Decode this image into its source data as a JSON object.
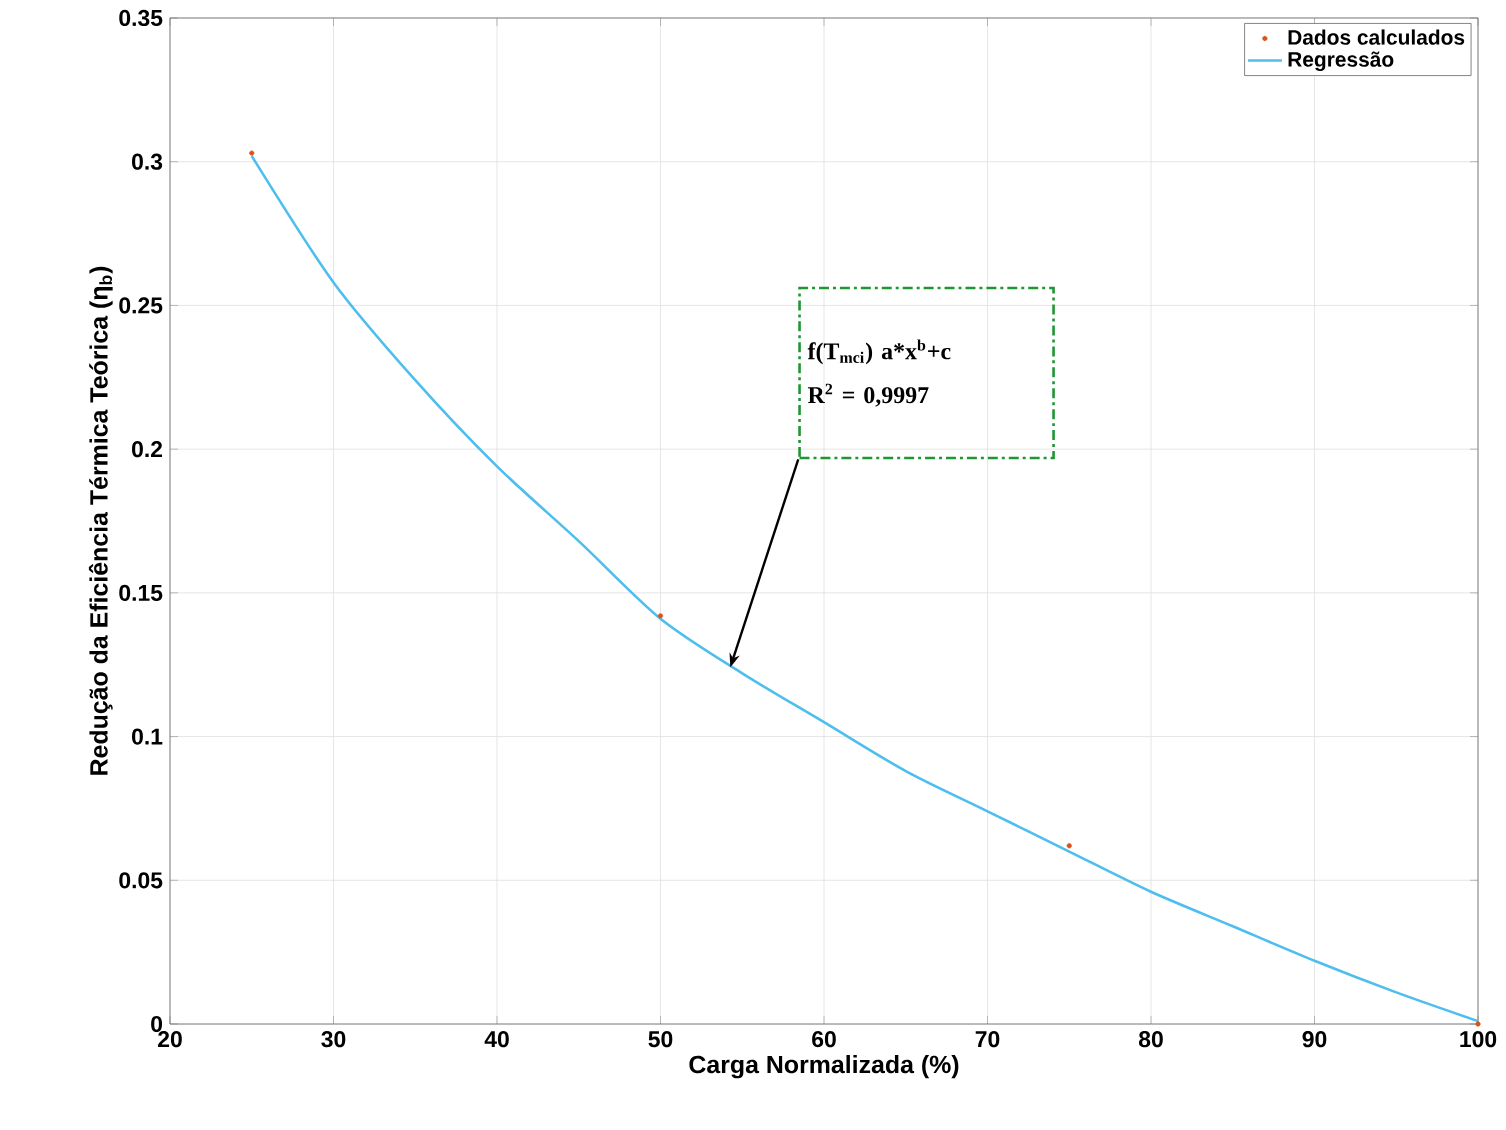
{
  "chart_data": {
    "type": "scatter",
    "xlabel": "Carga Normalizada (%)",
    "ylabel": "Redução da Eficiência Térmica Teórica (η$_{b}$)",
    "xlim": [
      20,
      100
    ],
    "ylim": [
      0,
      0.35
    ],
    "xticks": [
      20,
      30,
      40,
      50,
      60,
      70,
      80,
      90,
      100
    ],
    "yticks": [
      0,
      0.05,
      0.1,
      0.15,
      0.2,
      0.25,
      0.3,
      0.35
    ],
    "grid": true,
    "legend": "top right",
    "series": [
      {
        "name": "Dados calculados",
        "marker": "circle",
        "color": "#d95319",
        "x": [
          25,
          50,
          75,
          100
        ],
        "values": [
          0.303,
          0.142,
          0.062,
          0.0
        ]
      },
      {
        "name": "Regressão",
        "type": "line",
        "marker": "none",
        "line_style": "solid",
        "color": "#4dbeee",
        "x": [
          25,
          30,
          35,
          40,
          45,
          50,
          55,
          60,
          65,
          70,
          75,
          80,
          85,
          90,
          95,
          100
        ],
        "values": [
          0.302,
          0.258,
          0.224,
          0.194,
          0.168,
          0.141,
          0.122,
          0.105,
          0.088,
          0.074,
          0.06,
          0.046,
          0.034,
          0.022,
          0.011,
          0.001
        ]
      }
    ],
    "annotations": [
      "f(T$_{mci}$) a*x$^{b}$+c",
      "R$^{2}$ = 0,9997"
    ]
  }
}
